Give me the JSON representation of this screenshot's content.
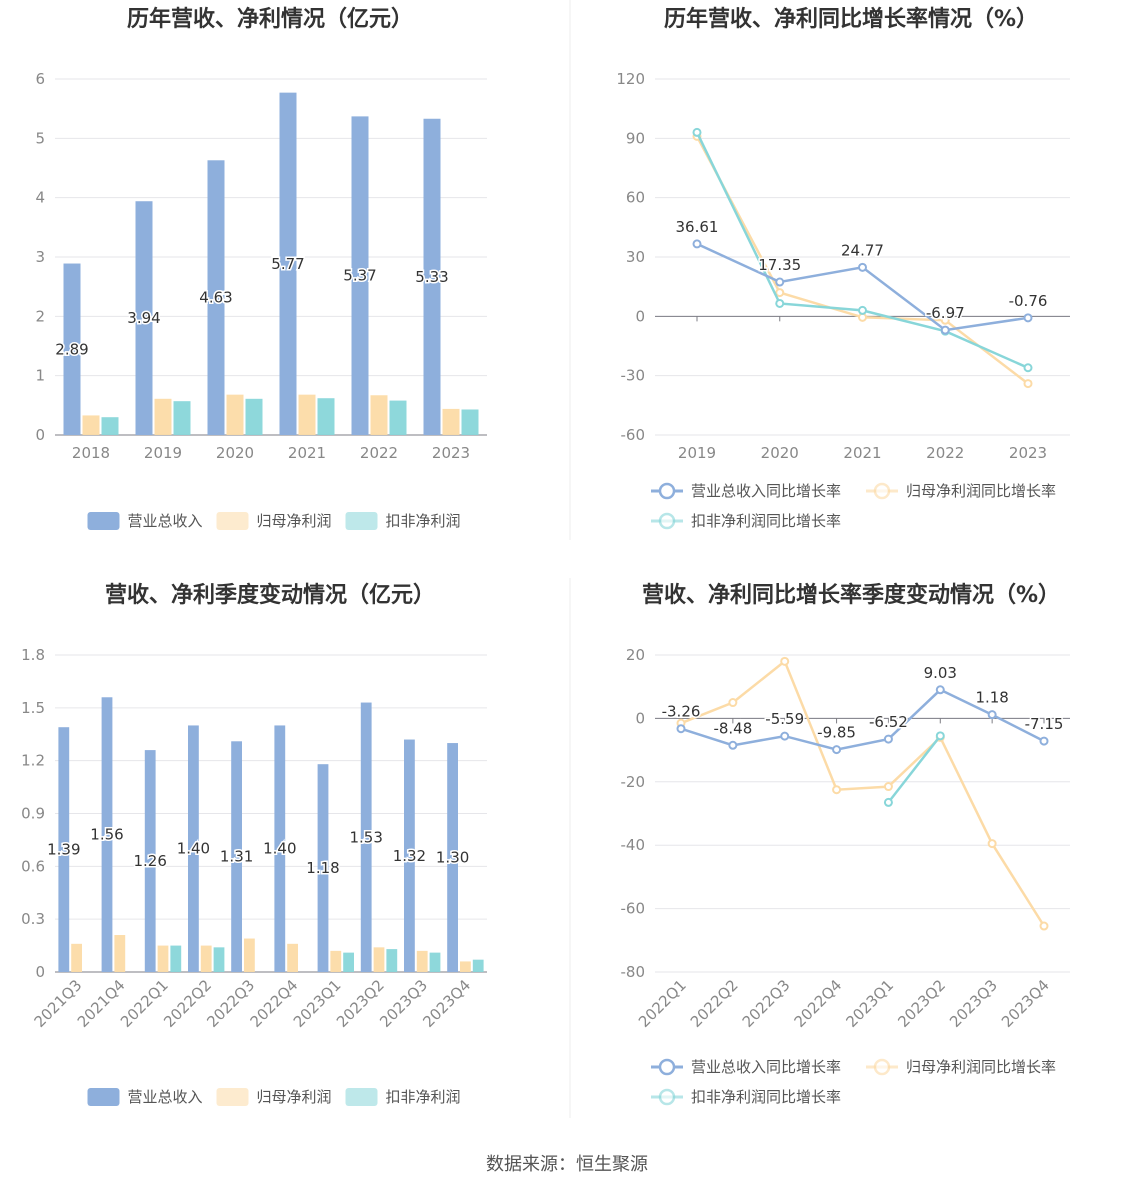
{
  "source": "数据来源：恒生聚源",
  "colors": {
    "revenue": "#8eafdc",
    "net": "#fcdba7",
    "deducted": "#88d6d9"
  },
  "chart_data": [
    {
      "type": "bar",
      "title": "历年营收、净利情况（亿元）",
      "categories": [
        "2018",
        "2019",
        "2020",
        "2021",
        "2022",
        "2023"
      ],
      "ylim": [
        0,
        6
      ],
      "yticks": [
        "0",
        "1",
        "2",
        "3",
        "4",
        "5",
        "6"
      ],
      "series": [
        {
          "name": "营业总收入",
          "values": [
            2.89,
            3.94,
            4.63,
            5.77,
            5.37,
            5.33
          ],
          "labels": [
            "2.89",
            "3.94",
            "4.63",
            "5.77",
            "5.37",
            "5.33"
          ]
        },
        {
          "name": "归母净利润",
          "values": [
            0.33,
            0.61,
            0.68,
            0.68,
            0.67,
            0.44
          ]
        },
        {
          "name": "扣非净利润",
          "values": [
            0.3,
            0.57,
            0.61,
            0.62,
            0.58,
            0.43
          ]
        }
      ],
      "legend": "bottom"
    },
    {
      "type": "line",
      "title": "历年营收、净利同比增长率情况（%）",
      "categories": [
        "2019",
        "2020",
        "2021",
        "2022",
        "2023"
      ],
      "ylim": [
        -60,
        120
      ],
      "yticks": [
        "-60",
        "-30",
        "0",
        "30",
        "60",
        "90",
        "120"
      ],
      "series": [
        {
          "name": "营业总收入同比增长率",
          "values": [
            36.61,
            17.35,
            24.77,
            -6.97,
            -0.76
          ],
          "labels": [
            "36.61",
            "17.35",
            "24.77",
            "-6.97",
            "-0.76"
          ]
        },
        {
          "name": "归母净利润同比增长率",
          "values": [
            91.0,
            12.0,
            -0.5,
            -2.0,
            -34.0
          ]
        },
        {
          "name": "扣非净利润同比增长率",
          "values": [
            93.0,
            6.5,
            3.0,
            -7.5,
            -26.0
          ]
        }
      ],
      "legend": "bottom"
    },
    {
      "type": "bar",
      "title": "营收、净利季度变动情况（亿元）",
      "categories": [
        "2021Q3",
        "2021Q4",
        "2022Q1",
        "2022Q2",
        "2022Q3",
        "2022Q4",
        "2023Q1",
        "2023Q2",
        "2023Q3",
        "2023Q4"
      ],
      "ylim": [
        0,
        1.8
      ],
      "yticks": [
        "0",
        "0.3",
        "0.6",
        "0.9",
        "1.2",
        "1.5",
        "1.8"
      ],
      "series": [
        {
          "name": "营业总收入",
          "values": [
            1.39,
            1.56,
            1.26,
            1.4,
            1.31,
            1.4,
            1.18,
            1.53,
            1.32,
            1.3
          ],
          "labels": [
            "1.39",
            "1.56",
            "1.26",
            "1.40",
            "1.31",
            "1.40",
            "1.18",
            "1.53",
            "1.32",
            "1.30"
          ]
        },
        {
          "name": "归母净利润",
          "values": [
            0.16,
            0.21,
            0.15,
            0.15,
            0.19,
            0.16,
            0.12,
            0.14,
            0.12,
            0.06
          ]
        },
        {
          "name": "扣非净利润",
          "values": [
            null,
            null,
            0.15,
            0.14,
            null,
            null,
            0.11,
            0.13,
            0.11,
            0.07
          ]
        }
      ],
      "legend": "bottom"
    },
    {
      "type": "line",
      "title": "营收、净利同比增长率季度变动情况（%）",
      "categories": [
        "2022Q1",
        "2022Q2",
        "2022Q3",
        "2022Q4",
        "2023Q1",
        "2023Q2",
        "2023Q3",
        "2023Q4"
      ],
      "ylim": [
        -80,
        20
      ],
      "yticks": [
        "-80",
        "-60",
        "-40",
        "-20",
        "0",
        "20"
      ],
      "series": [
        {
          "name": "营业总收入同比增长率",
          "values": [
            -3.26,
            -8.48,
            -5.59,
            -9.85,
            -6.52,
            9.03,
            1.18,
            -7.15
          ],
          "labels": [
            "-3.26",
            "-8.48",
            "-5.59",
            "-9.85",
            "-6.52",
            "9.03",
            "1.18",
            "-7.15"
          ]
        },
        {
          "name": "归母净利润同比增长率",
          "values": [
            -1.5,
            5.0,
            18.0,
            -22.5,
            -21.5,
            -6.0,
            -39.5,
            -65.5
          ]
        },
        {
          "name": "扣非净利润同比增长率",
          "values": [
            null,
            null,
            null,
            null,
            -26.5,
            -5.5,
            null,
            null
          ]
        }
      ],
      "legend": "bottom"
    }
  ]
}
